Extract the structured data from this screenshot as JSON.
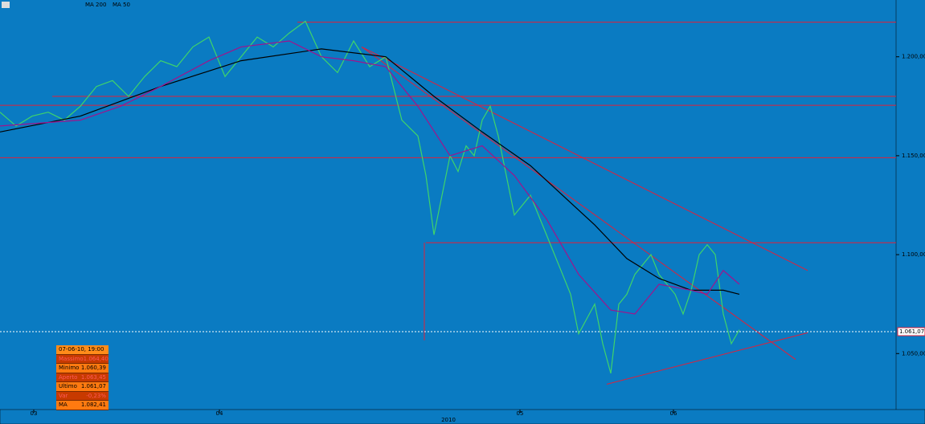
{
  "chart_data": {
    "type": "line",
    "xlim": [
      0,
      111.5
    ],
    "ylim": [
      1.0217,
      1.2287
    ],
    "xticks": [
      {
        "value": 4.2,
        "label": "03"
      },
      {
        "value": 27.3,
        "label": "04"
      },
      {
        "value": 64.7,
        "label": "05"
      },
      {
        "value": 83.8,
        "label": "06"
      }
    ],
    "year_label": {
      "value": 55.8,
      "label": "2010"
    },
    "yticks": [
      {
        "value": 1.2,
        "label": "1.200,00"
      },
      {
        "value": 1.15,
        "label": "1.150,00"
      },
      {
        "value": 1.1,
        "label": "1.100,00"
      },
      {
        "value": 1.05,
        "label": "1.050,00"
      }
    ],
    "legend": "top-left",
    "series": [
      {
        "color": "#3fd46a",
        "x": [
          0,
          2,
          4,
          6,
          8,
          10,
          12,
          14,
          16,
          18,
          20,
          22,
          24,
          26,
          28,
          30,
          32,
          34,
          36,
          38,
          40,
          42,
          44,
          46,
          48,
          50,
          52,
          53,
          54,
          55,
          56,
          57,
          58,
          59,
          60,
          61,
          62,
          63,
          64,
          66,
          68,
          70,
          71,
          72,
          74,
          75,
          76,
          77,
          78,
          79,
          80,
          81,
          82,
          84,
          85,
          86,
          87,
          88,
          89,
          90,
          91,
          92
        ],
        "values": [
          1.172,
          1.165,
          1.17,
          1.172,
          1.168,
          1.175,
          1.185,
          1.188,
          1.18,
          1.19,
          1.198,
          1.195,
          1.205,
          1.21,
          1.19,
          1.2,
          1.21,
          1.205,
          1.212,
          1.218,
          1.2,
          1.192,
          1.208,
          1.195,
          1.2,
          1.168,
          1.16,
          1.14,
          1.11,
          1.13,
          1.15,
          1.142,
          1.155,
          1.15,
          1.168,
          1.175,
          1.16,
          1.14,
          1.12,
          1.13,
          1.11,
          1.09,
          1.08,
          1.06,
          1.075,
          1.055,
          1.04,
          1.075,
          1.08,
          1.09,
          1.095,
          1.1,
          1.09,
          1.08,
          1.07,
          1.082,
          1.1,
          1.105,
          1.1,
          1.07,
          1.055,
          1.062
        ]
      },
      {
        "name": "MA 200",
        "color": "#000000",
        "x": [
          0,
          10,
          20,
          30,
          40,
          48,
          54,
          60,
          66,
          70,
          74,
          78,
          82,
          86,
          90,
          92
        ],
        "values": [
          1.162,
          1.17,
          1.185,
          1.198,
          1.204,
          1.2,
          1.18,
          1.162,
          1.145,
          1.13,
          1.115,
          1.098,
          1.088,
          1.082,
          1.082,
          1.08
        ]
      },
      {
        "name": "MA 50",
        "color": "#a0148c",
        "x": [
          0,
          10,
          15,
          20,
          26,
          30,
          36,
          40,
          44,
          48,
          52,
          56,
          60,
          64,
          68,
          72,
          76,
          79,
          82,
          86,
          88,
          90,
          92
        ],
        "values": [
          1.165,
          1.168,
          1.175,
          1.185,
          1.198,
          1.205,
          1.208,
          1.2,
          1.198,
          1.195,
          1.175,
          1.15,
          1.155,
          1.14,
          1.118,
          1.09,
          1.072,
          1.07,
          1.085,
          1.082,
          1.08,
          1.092,
          1.085
        ]
      }
    ],
    "trend_lines": [
      {
        "x": [
          37,
          111.5
        ],
        "y": [
          1.2175,
          1.2175
        ]
      },
      {
        "x": [
          6.5,
          111.5
        ],
        "y": [
          1.18,
          1.18
        ]
      },
      {
        "x": [
          0,
          111.5
        ],
        "y": [
          1.1755,
          1.1755
        ]
      },
      {
        "x": [
          0,
          111.5
        ],
        "y": [
          1.149,
          1.149
        ]
      },
      {
        "x": [
          53,
          111.5
        ],
        "y": [
          1.106,
          1.106
        ]
      },
      {
        "x": [
          45,
          100.5
        ],
        "y": [
          1.205,
          1.092
        ]
      },
      {
        "x": [
          45,
          99
        ],
        "y": [
          1.205,
          1.047
        ]
      },
      {
        "x": [
          75.5,
          100.5
        ],
        "y": [
          1.0345,
          1.0605
        ]
      },
      {
        "x": [
          52.8,
          52.8
        ],
        "y": [
          1.106,
          1.0567
        ]
      }
    ],
    "last_price": {
      "value": 1.06107,
      "label": "1.061,07"
    },
    "info_box": {
      "title": "07-06-10, 19:00",
      "rows": [
        [
          "Massimo",
          "1.064,40"
        ],
        [
          "Minimo",
          "1.060,39"
        ],
        [
          "Aperto",
          "1.063,45"
        ],
        [
          "Ultimo",
          "1.061,07"
        ],
        [
          "Var",
          "-0,23%"
        ],
        [
          "MA",
          "1.082,41"
        ]
      ]
    }
  }
}
